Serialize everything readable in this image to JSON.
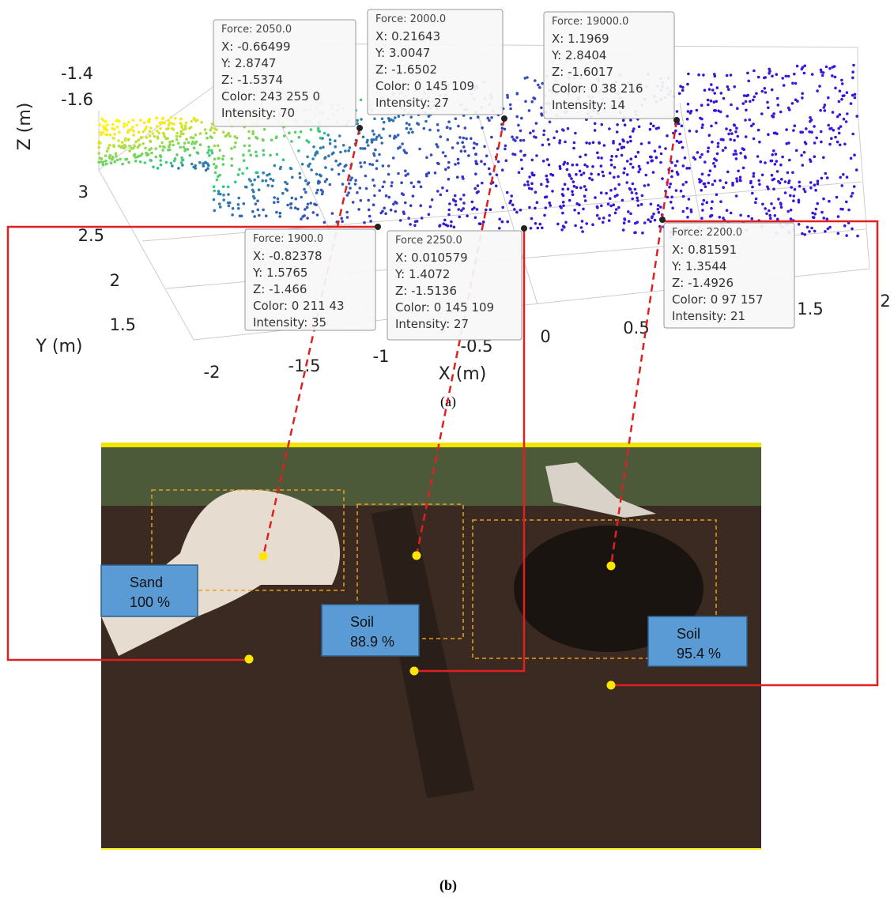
{
  "figure_a": {
    "axis_labels": {
      "z": "Z (m)",
      "y": "Y (m)",
      "x": "X (m)"
    },
    "z_ticks": [
      "-1.4",
      "-1.6"
    ],
    "y_ticks": [
      "3",
      "2.5",
      "2",
      "1.5"
    ],
    "x_ticks": [
      "-2",
      "-1.5",
      "-1",
      "-0.5",
      "0",
      "0.5",
      "1.5",
      "2"
    ],
    "datatips": [
      {
        "lines": [
          "Force: 2050.0",
          "X: -0.66499",
          "Y: 2.8747",
          "Z: -1.5374",
          "Color: 243  255    0",
          "Intensity: 70"
        ]
      },
      {
        "lines": [
          "Force: 2000.0",
          "X: 0.21643",
          "Y: 3.0047",
          "Z: -1.6502",
          "Color: 0  145  109",
          "Intensity: 27"
        ]
      },
      {
        "lines": [
          "Force: 19000.0",
          "X: 1.1969",
          "Y: 2.8404",
          "Z: -1.6017",
          "Color: 0   38  216",
          "Intensity: 14"
        ]
      },
      {
        "lines": [
          "Force: 1900.0",
          "X: -0.82378",
          "Y: 1.5765",
          "Z: -1.466",
          "Color: 0  211   43",
          "Intensity: 35"
        ]
      },
      {
        "lines": [
          "Force 2250.0",
          "X: 0.010579",
          "Y: 1.4072",
          "Z: -1.5136",
          "Color: 0  145  109",
          "Intensity: 27"
        ]
      },
      {
        "lines": [
          "Force: 2200.0",
          "X: 0.81591",
          "Y: 1.3544",
          "Z: -1.4926",
          "Color: 0   97  157",
          "Intensity: 21"
        ]
      }
    ],
    "caption": "(a)"
  },
  "figure_b": {
    "labels": [
      {
        "lines": [
          "Sand",
          "100 %"
        ]
      },
      {
        "lines": [
          "Soil",
          "88.9 %"
        ]
      },
      {
        "lines": [
          "Soil",
          "95.4 %"
        ]
      }
    ],
    "caption": "(b)"
  }
}
